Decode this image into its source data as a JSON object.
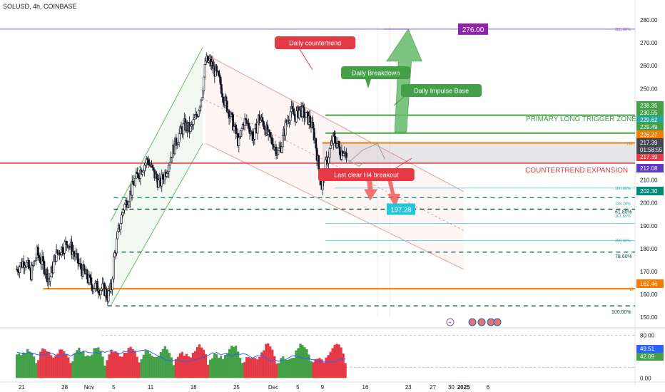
{
  "header": {
    "symbol_line": "SOLUSD, 4h, COINBASE"
  },
  "chart_data": {
    "type": "candlestick",
    "ylim": [
      146,
      285
    ],
    "y_ticks": [
      "280.00",
      "270.00",
      "260.00",
      "250.00",
      "240.00",
      "230.00",
      "220.00",
      "210.00",
      "200.00",
      "190.00",
      "180.00",
      "170.00",
      "160.00",
      "150.00"
    ],
    "x_ticks": [
      {
        "label": "21",
        "d": -8
      },
      {
        "label": "28",
        "d": -1
      },
      {
        "label": "Nov",
        "d": 3
      },
      {
        "label": "5",
        "d": 7
      },
      {
        "label": "11",
        "d": 13
      },
      {
        "label": "18",
        "d": 20
      },
      {
        "label": "25",
        "d": 27
      },
      {
        "label": "Dec",
        "d": 33
      },
      {
        "label": "5",
        "d": 37
      },
      {
        "label": "9",
        "d": 41
      },
      {
        "label": "16",
        "d": 48
      },
      {
        "label": "23",
        "d": 55
      },
      {
        "label": "27",
        "d": 59
      },
      {
        "label": "30",
        "d": 62
      },
      {
        "label": "2025",
        "d": 64
      },
      {
        "label": "6",
        "d": 68
      }
    ],
    "price_path": [
      [
        -8.8,
        171
      ],
      [
        -7.5,
        175
      ],
      [
        -6.5,
        169
      ],
      [
        -5.5,
        178
      ],
      [
        -4.5,
        173
      ],
      [
        -3.5,
        166
      ],
      [
        -2.5,
        177
      ],
      [
        -1.5,
        180
      ],
      [
        -0.5,
        183
      ],
      [
        0.5,
        178
      ],
      [
        1.5,
        172
      ],
      [
        2.5,
        168
      ],
      [
        3.5,
        164
      ],
      [
        4.5,
        163
      ],
      [
        5.5,
        162
      ],
      [
        6.0,
        159
      ],
      [
        6.6,
        163
      ],
      [
        7.0,
        175
      ],
      [
        7.8,
        188
      ],
      [
        8.6,
        198
      ],
      [
        9.5,
        203
      ],
      [
        10.5,
        210
      ],
      [
        11.5,
        215
      ],
      [
        12.5,
        219
      ],
      [
        13.5,
        213
      ],
      [
        14.5,
        208
      ],
      [
        15.5,
        214
      ],
      [
        16.5,
        222
      ],
      [
        17.5,
        229
      ],
      [
        18.5,
        234
      ],
      [
        19.5,
        232
      ],
      [
        20.5,
        238
      ],
      [
        21.4,
        248
      ],
      [
        22.0,
        262
      ],
      [
        22.8,
        261
      ],
      [
        23.6,
        257
      ],
      [
        24.4,
        252
      ],
      [
        25.0,
        245
      ],
      [
        25.8,
        240
      ],
      [
        26.6,
        233
      ],
      [
        27.4,
        226
      ],
      [
        28.2,
        236
      ],
      [
        29.0,
        234
      ],
      [
        29.8,
        228
      ],
      [
        30.6,
        237
      ],
      [
        31.4,
        235
      ],
      [
        32.2,
        229
      ],
      [
        33.0,
        226
      ],
      [
        33.8,
        222
      ],
      [
        34.4,
        226
      ],
      [
        35.0,
        234
      ],
      [
        35.8,
        240
      ],
      [
        36.6,
        238
      ],
      [
        37.4,
        241
      ],
      [
        38.2,
        238
      ],
      [
        39.0,
        236
      ],
      [
        39.8,
        228
      ],
      [
        40.4,
        215
      ],
      [
        40.9,
        207
      ],
      [
        41.5,
        216
      ],
      [
        42.2,
        223
      ],
      [
        42.8,
        228
      ],
      [
        43.4,
        226
      ],
      [
        44.0,
        222
      ],
      [
        44.6,
        224
      ],
      [
        45.1,
        217
      ]
    ],
    "horizontal_levels": [
      {
        "price": 238.35,
        "label": "238.35",
        "color": "#43a047",
        "style": "solid"
      },
      {
        "price": 230.55,
        "label": "230.55",
        "color": "#43a047",
        "style": "solid"
      },
      {
        "price": 229.62,
        "label": "229.62",
        "color": "#26a69a",
        "style": "box"
      },
      {
        "price": 229.49,
        "label": "229.49",
        "color": "#43a047",
        "style": "box"
      },
      {
        "price": 226.27,
        "label": "226.27",
        "color": "#f57c00",
        "style": "solid"
      },
      {
        "price": 217.39,
        "label": "217.39",
        "color": "#e53945",
        "style": "solid"
      },
      {
        "price": 212.08,
        "label": "212.08",
        "color": "#5c3ac7",
        "style": "box"
      },
      {
        "price": 202.3,
        "label": "202.30",
        "color": "#00897b",
        "style": "dashed"
      },
      {
        "price": 197.28,
        "label": "197.28",
        "color": "#004d40",
        "style": "dashed"
      },
      {
        "price": 178.5,
        "label": "",
        "color": "#004d40",
        "style": "dashed"
      },
      {
        "price": 162.46,
        "label": "162.46",
        "color": "#f57c00",
        "style": "solid"
      },
      {
        "price": 155.0,
        "label": "",
        "color": "#004d40",
        "style": "dashed"
      },
      {
        "price": 276.0,
        "label": "276.00",
        "color": "#8e24aa",
        "style": "target"
      }
    ],
    "current_price": {
      "price": 217.39,
      "label": "217.39",
      "countdown": "01:58:55"
    },
    "fib_labels": [
      {
        "text": "200.00%",
        "price": 276.0
      },
      {
        "text": "100.00%",
        "price": 206.5
      },
      {
        "text": "138.20%",
        "price": 199.8
      },
      {
        "text": "61.80%",
        "price": 196.0
      },
      {
        "text": "161.80%",
        "price": 194.3
      },
      {
        "text": "200.00%",
        "price": 183.5
      },
      {
        "text": "78.60%",
        "price": 176.5
      },
      {
        "text": "100.00%",
        "price": 152.3
      }
    ],
    "annotations": [
      {
        "text": "Daily countertrend",
        "kind": "badge",
        "color": "#e53945"
      },
      {
        "text": "Daily Breakdown",
        "kind": "badge",
        "color": "#43a047"
      },
      {
        "text": "Daily Impulse Base",
        "kind": "badge",
        "color": "#43a047"
      },
      {
        "text": "Last clear H4 breakout",
        "kind": "badge",
        "color": "#e53945"
      },
      {
        "text": "PRIMARY LONG TRIGGER ZONE",
        "kind": "text",
        "color": "#43a047"
      },
      {
        "text": "COUNTERTREND EXPANSION",
        "kind": "text",
        "color": "#e53945"
      },
      {
        "text": "H4",
        "kind": "tag",
        "color": "#f57c00"
      },
      {
        "text": "W",
        "kind": "tag",
        "color": "#f57c00"
      }
    ],
    "oscillator": {
      "ylim": [
        -5,
        90
      ],
      "y_ticks": [
        "80.00",
        "0.00"
      ],
      "line_value": "49.51",
      "bar_value": "42.09",
      "line_color": "#2962ff",
      "up_color": "#43a047",
      "down_color": "#e53945"
    }
  }
}
